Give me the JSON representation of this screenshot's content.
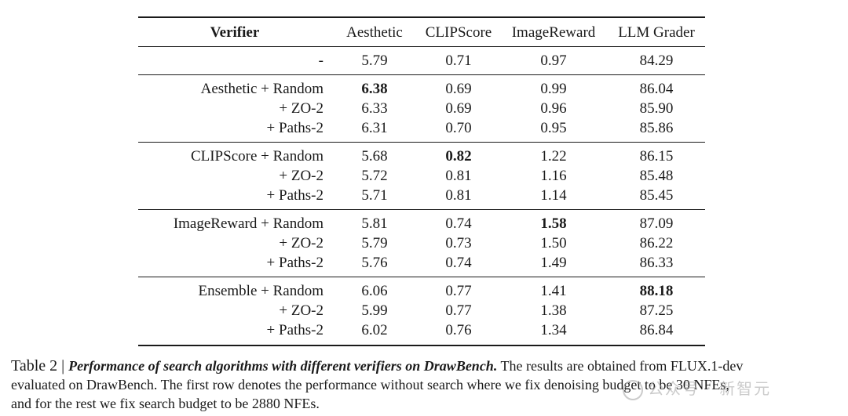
{
  "table": {
    "headers": [
      "Verifier",
      "Aesthetic",
      "CLIPScore",
      "ImageReward",
      "LLM Grader"
    ],
    "groups": [
      {
        "rows": [
          {
            "label": "-",
            "values": [
              "5.79",
              "0.71",
              "0.97",
              "84.29"
            ]
          }
        ]
      },
      {
        "rows": [
          {
            "label": "Aesthetic + Random",
            "values": [
              "6.38",
              "0.69",
              "0.99",
              "86.04"
            ]
          },
          {
            "label": "+ ZO-2",
            "values": [
              "6.33",
              "0.69",
              "0.96",
              "85.90"
            ]
          },
          {
            "label": "+ Paths-2",
            "values": [
              "6.31",
              "0.70",
              "0.95",
              "85.86"
            ]
          }
        ]
      },
      {
        "rows": [
          {
            "label": "CLIPScore + Random",
            "values": [
              "5.68",
              "0.82",
              "1.22",
              "86.15"
            ]
          },
          {
            "label": "+ ZO-2",
            "values": [
              "5.72",
              "0.81",
              "1.16",
              "85.48"
            ]
          },
          {
            "label": "+ Paths-2",
            "values": [
              "5.71",
              "0.81",
              "1.14",
              "85.45"
            ]
          }
        ]
      },
      {
        "rows": [
          {
            "label": "ImageReward + Random",
            "values": [
              "5.81",
              "0.74",
              "1.58",
              "87.09"
            ]
          },
          {
            "label": "+ ZO-2",
            "values": [
              "5.79",
              "0.73",
              "1.50",
              "86.22"
            ]
          },
          {
            "label": "+ Paths-2",
            "values": [
              "5.76",
              "0.74",
              "1.49",
              "86.33"
            ]
          }
        ]
      },
      {
        "rows": [
          {
            "label": "Ensemble + Random",
            "values": [
              "6.06",
              "0.77",
              "1.41",
              "88.18"
            ]
          },
          {
            "label": "+ ZO-2",
            "values": [
              "5.99",
              "0.77",
              "1.38",
              "87.25"
            ]
          },
          {
            "label": "+ Paths-2",
            "values": [
              "6.02",
              "0.76",
              "1.34",
              "86.84"
            ]
          }
        ]
      }
    ],
    "bold_cells": {
      "aesthetic_random_aesthetic": "6.38",
      "clipscore_random_clipscore": "0.82",
      "imagereward_random_imagereward": "1.58",
      "ensemble_random_llm": "88.18"
    }
  },
  "caption": {
    "lead": "Table 2 | ",
    "emph": "Performance of search algorithms with different verifiers on DrawBench.",
    "line1_rest": " The results are obtained from FLUX.1-dev",
    "line2": "evaluated on DrawBench. The first row denotes the performance without search where we fix denoising budget to be 30 NFEs,",
    "line3": "and for the rest we fix search budget to be 2880 NFEs."
  },
  "watermark": {
    "text": "公众号 · 新智元",
    "icon": "wechat-icon"
  }
}
